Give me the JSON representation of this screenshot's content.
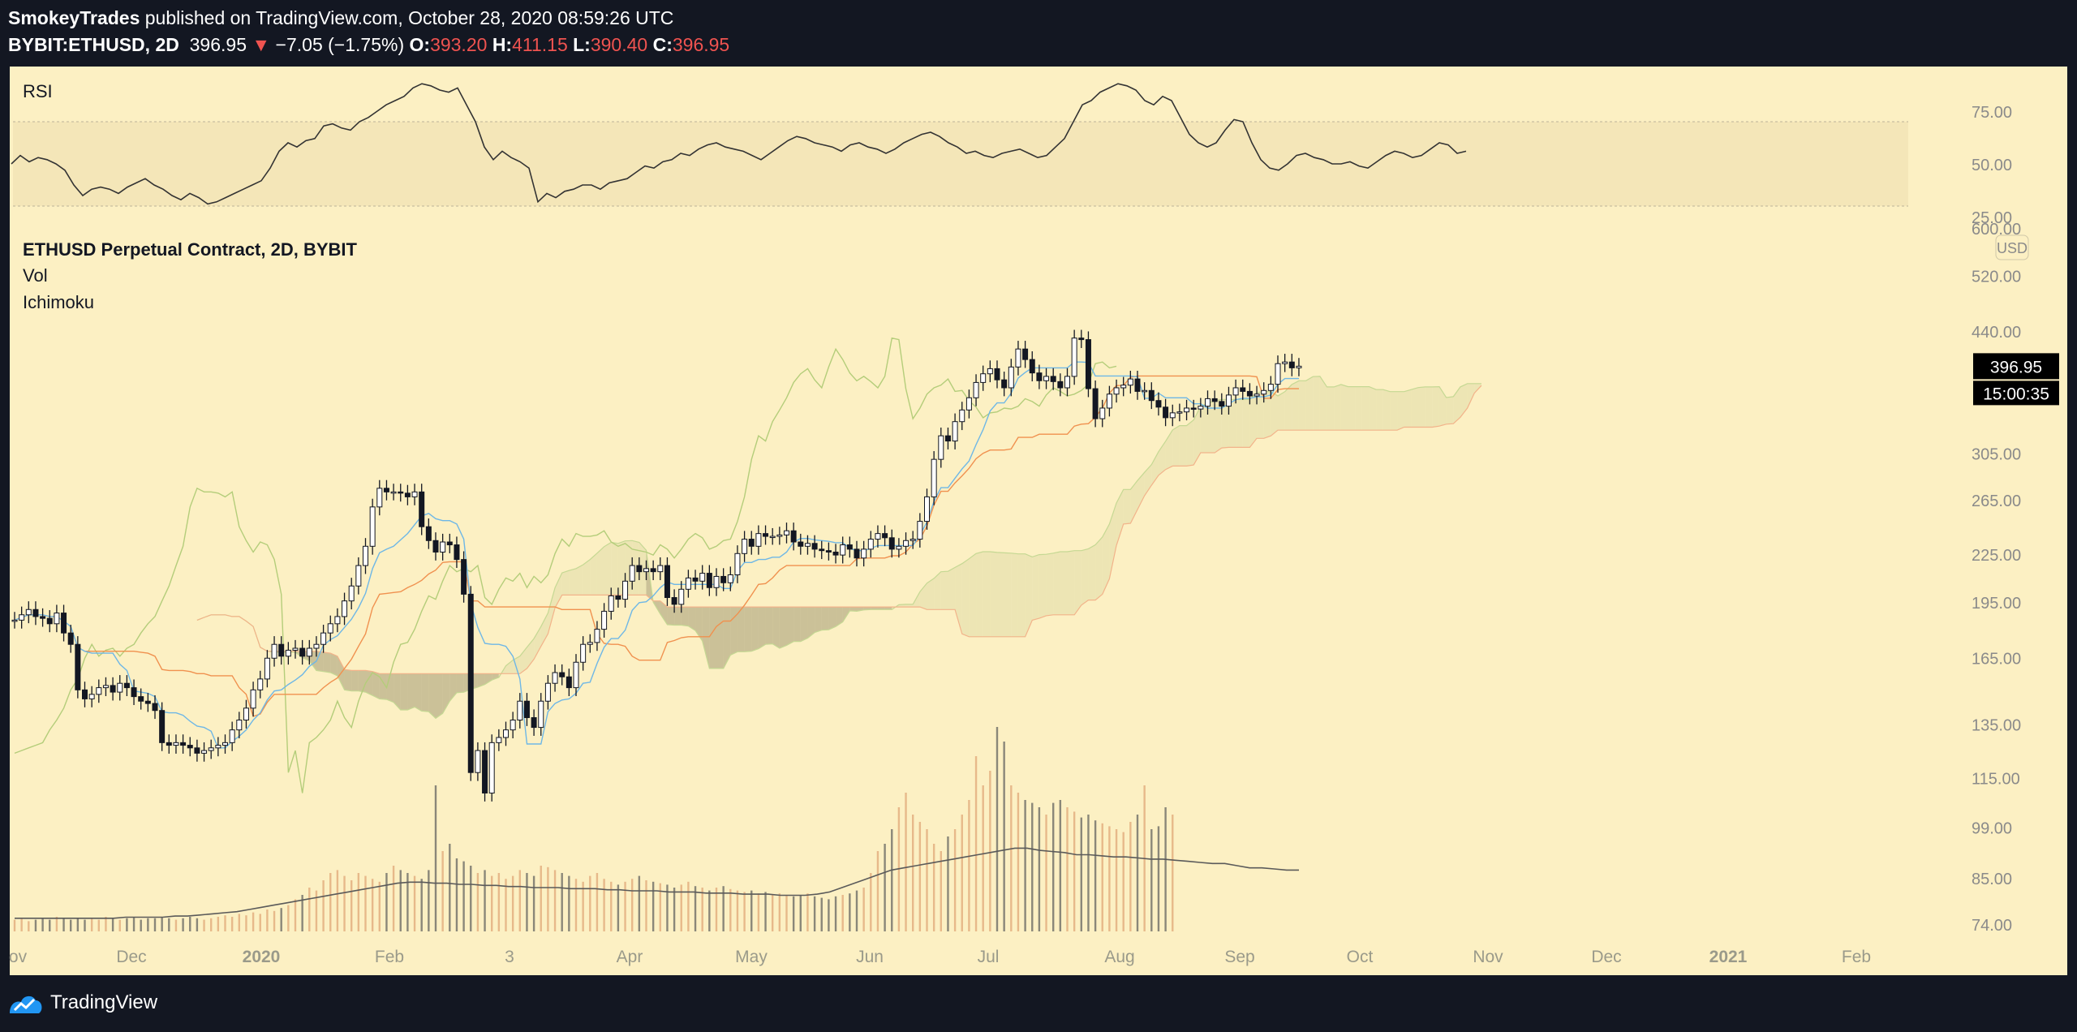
{
  "header": {
    "author": "SmokeyTrades",
    "published_text": "published on TradingView.com, October 28, 2020 08:59:26 UTC",
    "symbol": "BYBIT:ETHUSD, 2D",
    "last": "396.95",
    "change": "−7.05 (−1.75%)",
    "o_label": "O:",
    "o": "393.20",
    "h_label": "H:",
    "h": "411.15",
    "l_label": "L:",
    "l": "390.40",
    "c_label": "C:",
    "c": "396.95"
  },
  "footer": {
    "brand": "TradingView"
  },
  "colors": {
    "background": "#131722",
    "panel": "#fcf0c3",
    "rsi_band": "#f4e6b8",
    "up_candle": "#ffffff",
    "down_candle": "#131722",
    "wick": "#131722",
    "tenkan": "#6eb7e6",
    "kijun": "#f0914f",
    "chikou": "#b4cd7a",
    "cloud_bear": "#a39a75",
    "cloud_bull": "#e8e2b0",
    "vol_up": "#e7b98a",
    "vol_down": "#8a8779",
    "vol_ma": "#5a5a5a",
    "rsi_line": "#333333",
    "price_label_bg": "#000000"
  },
  "chart_data": [
    {
      "type": "line",
      "name": "RSI",
      "title": "RSI",
      "yticks": [
        "75.00",
        "50.00",
        "25.00"
      ],
      "ylim": [
        25,
        90
      ],
      "band": [
        30,
        70
      ],
      "values": [
        50,
        54,
        51,
        53,
        52,
        50,
        47,
        40,
        35,
        38,
        39,
        38,
        36,
        39,
        41,
        43,
        40,
        38,
        35,
        33,
        36,
        34,
        31,
        32,
        34,
        36,
        38,
        40,
        42,
        48,
        56,
        60,
        58,
        61,
        62,
        68,
        69,
        67,
        66,
        70,
        72,
        75,
        78,
        80,
        82,
        86,
        88,
        87,
        85,
        84,
        86,
        78,
        70,
        58,
        52,
        56,
        53,
        51,
        48,
        32,
        36,
        34,
        37,
        38,
        40,
        40,
        38,
        41,
        42,
        43,
        46,
        49,
        48,
        51,
        52,
        55,
        54,
        57,
        59,
        60,
        58,
        57,
        56,
        54,
        52,
        55,
        58,
        61,
        63,
        62,
        60,
        59,
        58,
        56,
        59,
        60,
        58,
        57,
        55,
        57,
        60,
        62,
        64,
        65,
        63,
        60,
        58,
        55,
        56,
        54,
        53,
        55,
        56,
        57,
        55,
        53,
        54,
        58,
        62,
        70,
        78,
        80,
        84,
        86,
        88,
        87,
        85,
        80,
        78,
        82,
        80,
        72,
        64,
        60,
        58,
        60,
        66,
        71,
        70,
        60,
        52,
        48,
        47,
        50,
        54,
        55,
        53,
        52,
        50,
        50,
        51,
        49,
        48,
        51,
        54,
        56,
        55,
        53,
        54,
        57,
        60,
        59,
        55,
        56
      ],
      "line_color": "#333333"
    },
    {
      "type": "candlestick",
      "title": "ETHUSD Perpetual Contract, 2D, BYBIT",
      "indicators": [
        "Vol",
        "Ichimoku"
      ],
      "currency": "USD",
      "ylim": [
        74,
        600
      ],
      "yscale": "log",
      "yticks": [
        "600.00",
        "520.00",
        "440.00",
        "305.00",
        "265.00",
        "225.00",
        "195.00",
        "165.00",
        "135.00",
        "115.00",
        "99.00",
        "85.00",
        "74.00"
      ],
      "xticks": [
        "ov",
        "Dec",
        "2020",
        "Feb",
        "3",
        "Apr",
        "May",
        "Jun",
        "Jul",
        "Aug",
        "Sep",
        "Oct",
        "Nov",
        "Dec",
        "2021",
        "Feb"
      ],
      "last_price": "396.95",
      "countdown": "15:00:35",
      "close": [
        185,
        188,
        191,
        187,
        186,
        183,
        189,
        178,
        172,
        150,
        146,
        148,
        151,
        152,
        149,
        153,
        151,
        147,
        145,
        144,
        141,
        128,
        127,
        128,
        127,
        126,
        124,
        125,
        126,
        127,
        128,
        133,
        137,
        142,
        150,
        155,
        165,
        172,
        166,
        169,
        170,
        166,
        170,
        172,
        178,
        183,
        187,
        196,
        205,
        218,
        231,
        260,
        275,
        272,
        272,
        271,
        268,
        272,
        245,
        235,
        227,
        234,
        232,
        222,
        200,
        117,
        125,
        110,
        128,
        130,
        133,
        137,
        145,
        138,
        134,
        145,
        153,
        158,
        156,
        151,
        163,
        172,
        173,
        180,
        190,
        199,
        197,
        208,
        218,
        214,
        216,
        214,
        218,
        198,
        194,
        203,
        210,
        208,
        213,
        204,
        211,
        207,
        212,
        226,
        236,
        231,
        240,
        238,
        238,
        239,
        242,
        234,
        231,
        233,
        229,
        228,
        227,
        225,
        232,
        229,
        223,
        229,
        236,
        240,
        237,
        229,
        231,
        235,
        236,
        249,
        268,
        300,
        322,
        317,
        336,
        348,
        361,
        378,
        388,
        394,
        381,
        372,
        396,
        418,
        405,
        389,
        380,
        385,
        379,
        372,
        385,
        432,
        430,
        371,
        339,
        350,
        365,
        372,
        375,
        382,
        368,
        369,
        358,
        351,
        340,
        345,
        346,
        350,
        349,
        352,
        360,
        357,
        352,
        364,
        372,
        368,
        363,
        365,
        369,
        376,
        400,
        402,
        395,
        396.95
      ],
      "series": [
        {
          "name": "Conversion Line",
          "color": "#6eb7e6"
        },
        {
          "name": "Base Line",
          "color": "#f0914f"
        },
        {
          "name": "Lagging Span",
          "color": "#b4cd7a"
        },
        {
          "name": "Cloud",
          "color": "#a39a75"
        }
      ]
    },
    {
      "type": "bar",
      "name": "Vol",
      "up_color": "#e7b98a",
      "down_color": "#8a8779",
      "values": [
        8,
        9,
        7,
        8,
        9,
        8,
        10,
        9,
        8,
        9,
        8,
        9,
        8,
        10,
        9,
        8,
        9,
        10,
        8,
        9,
        9,
        10,
        9,
        8,
        9,
        10,
        9,
        8,
        9,
        10,
        11,
        10,
        12,
        11,
        13,
        12,
        15,
        14,
        16,
        18,
        22,
        25,
        30,
        28,
        35,
        40,
        42,
        38,
        35,
        40,
        38,
        36,
        34,
        40,
        45,
        42,
        40,
        38,
        36,
        42,
        100,
        55,
        60,
        50,
        48,
        45,
        40,
        42,
        38,
        40,
        36,
        38,
        42,
        40,
        38,
        45,
        44,
        42,
        40,
        38,
        36,
        34,
        38,
        40,
        36,
        34,
        32,
        34,
        36,
        38,
        35,
        34,
        33,
        32,
        30,
        32,
        34,
        31,
        30,
        28,
        30,
        31,
        29,
        28,
        27,
        28,
        26,
        27,
        25,
        26,
        25,
        24,
        25,
        26,
        24,
        23,
        22,
        24,
        25,
        26,
        28,
        30,
        40,
        55,
        60,
        70,
        85,
        95,
        80,
        75,
        70,
        60,
        55,
        65,
        70,
        80,
        90,
        120,
        100,
        110,
        140,
        130,
        100,
        95,
        90,
        88,
        85,
        80,
        88,
        90,
        85,
        82,
        78,
        80,
        76,
        74,
        72,
        70,
        68,
        75,
        80,
        100,
        70,
        72,
        85,
        80
      ],
      "ma": [
        12,
        12,
        12,
        12,
        12,
        12,
        12,
        12,
        12,
        13,
        13,
        13,
        13,
        14,
        14,
        15,
        16,
        17,
        18,
        20,
        22,
        24,
        26,
        28,
        30,
        32,
        34,
        36,
        38,
        40,
        42,
        44,
        45,
        45,
        44,
        44,
        43,
        43,
        42,
        42,
        41,
        41,
        40,
        40,
        40,
        39,
        39,
        39,
        38,
        38,
        37,
        37,
        37,
        36,
        36,
        36,
        35,
        35,
        35,
        34,
        34,
        34,
        33,
        33,
        33,
        34,
        36,
        40,
        44,
        48,
        52,
        56,
        58,
        60,
        62,
        64,
        66,
        68,
        70,
        72,
        74,
        76,
        76,
        74,
        73,
        72,
        70,
        70,
        69,
        68,
        68,
        67,
        66,
        66,
        65,
        64,
        63,
        62,
        62,
        60,
        58,
        58,
        57,
        56,
        56
      ]
    }
  ]
}
